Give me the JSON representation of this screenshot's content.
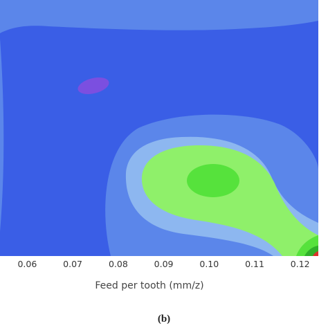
{
  "chart_data": {
    "type": "heatmap",
    "subtype": "filled-contour",
    "title": "",
    "xlabel": "Feed per tooth (mm/z)",
    "ylabel": "",
    "xlim": [
      0.054,
      0.124
    ],
    "x_ticks": [
      {
        "value": 0.06,
        "label": "0.06"
      },
      {
        "value": 0.07,
        "label": "0.07"
      },
      {
        "value": 0.08,
        "label": "0.08"
      },
      {
        "value": 0.09,
        "label": "0.09"
      },
      {
        "value": 0.1,
        "label": "0.10"
      },
      {
        "value": 0.11,
        "label": "0.11"
      },
      {
        "value": 0.12,
        "label": "0.12"
      }
    ],
    "levels": [
      {
        "name": "level-1",
        "color": "#7b4fe0"
      },
      {
        "name": "level-2",
        "color": "#3a5ee6"
      },
      {
        "name": "level-3",
        "color": "#5b86ea"
      },
      {
        "name": "level-4",
        "color": "#8db7f0"
      },
      {
        "name": "level-5",
        "color": "#8ff06a"
      },
      {
        "name": "level-6",
        "color": "#56e23c"
      },
      {
        "name": "level-7",
        "color": "#2fb02a"
      },
      {
        "name": "level-8",
        "color": "#d9322a"
      }
    ],
    "grid": false,
    "legend": "none"
  },
  "caption": "(b)"
}
